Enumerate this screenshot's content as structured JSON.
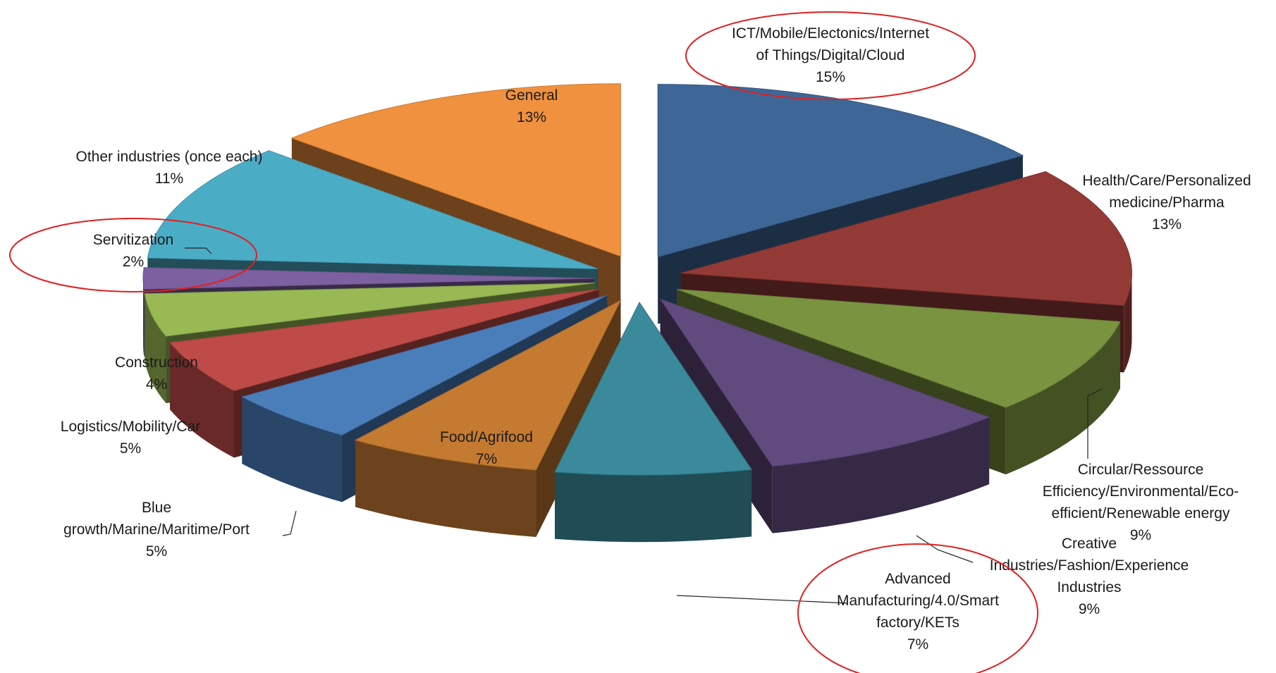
{
  "chart_data": {
    "type": "pie",
    "style": "3d-exploded",
    "slices": [
      {
        "label_lines": [
          "ICT/Mobile/Electonics/Internet",
          "of Things/Digital/Cloud"
        ],
        "pct": "15%",
        "value": 15,
        "color": "#3E6797",
        "highlighted": true
      },
      {
        "label_lines": [
          "Health/Care/Personalized",
          "medicine/Pharma"
        ],
        "pct": "13%",
        "value": 13,
        "color": "#933A37",
        "highlighted": false
      },
      {
        "label_lines": [
          "Circular/Ressource",
          "Efficiency/Environmental/Eco-",
          "efficient/Renewable energy"
        ],
        "pct": "9%",
        "value": 9,
        "color": "#7A9340",
        "highlighted": false
      },
      {
        "label_lines": [
          "Creative",
          "Industries/Fashion/Experience",
          "Industries"
        ],
        "pct": "9%",
        "value": 9,
        "color": "#614A7E",
        "highlighted": false
      },
      {
        "label_lines": [
          "Advanced",
          "Manufacturing/4.0/Smart",
          "factory/KETs"
        ],
        "pct": "7%",
        "value": 7,
        "color": "#3A8A9B",
        "highlighted": true
      },
      {
        "label_lines": [
          "Food/Agrifood"
        ],
        "pct": "7%",
        "value": 7,
        "color": "#C57A32",
        "highlighted": false
      },
      {
        "label_lines": [
          "Blue",
          "growth/Marine/Maritime/Port"
        ],
        "pct": "5%",
        "value": 5,
        "color": "#4A7EBB",
        "highlighted": false
      },
      {
        "label_lines": [
          "Logistics/Mobility/Car"
        ],
        "pct": "5%",
        "value": 5,
        "color": "#BE4B48",
        "highlighted": false
      },
      {
        "label_lines": [
          "Construction"
        ],
        "pct": "4%",
        "value": 4,
        "color": "#98B954",
        "highlighted": false
      },
      {
        "label_lines": [
          "Servitization"
        ],
        "pct": "2%",
        "value": 2,
        "color": "#7D60A0",
        "highlighted": true
      },
      {
        "label_lines": [
          "Other industries (once each)"
        ],
        "pct": "11%",
        "value": 11,
        "color": "#4BACC6",
        "highlighted": false
      },
      {
        "label_lines": [
          "General"
        ],
        "pct": "13%",
        "value": 13,
        "color": "#F0913F",
        "highlighted": false
      }
    ],
    "highlight_color": "#E02020",
    "label_color": "#1a1a1a"
  }
}
